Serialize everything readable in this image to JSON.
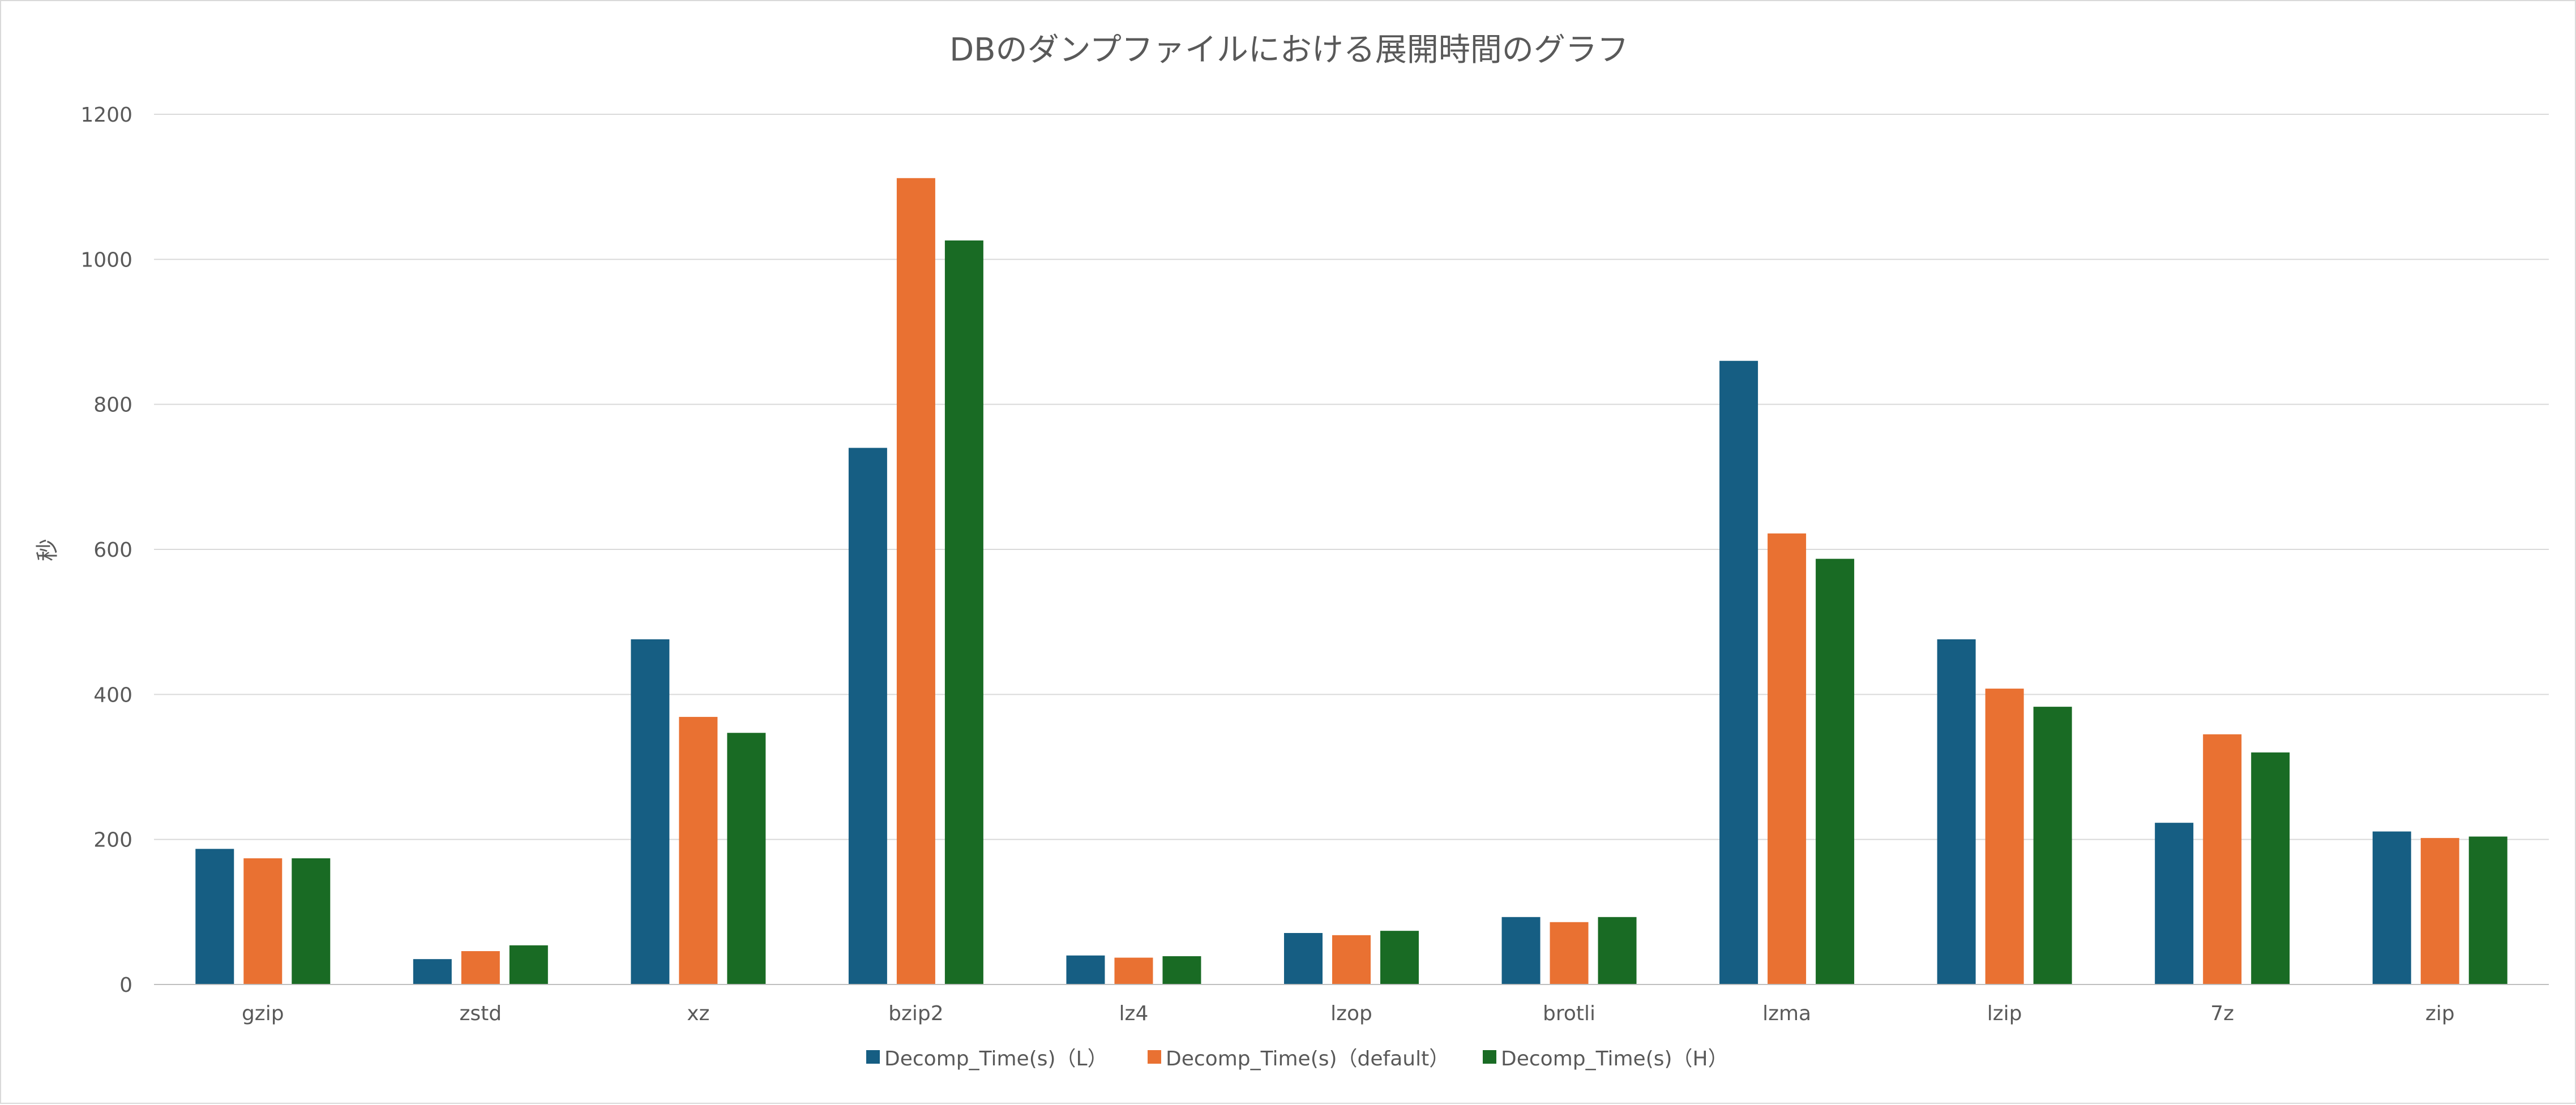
{
  "chart_data": {
    "type": "bar",
    "title": "DBのダンプファイルにおける展開時間のグラフ",
    "xlabel": "",
    "ylabel": "秒",
    "ylim": [
      0,
      1200
    ],
    "yticks": [
      0,
      200,
      400,
      600,
      800,
      1000,
      1200
    ],
    "grid": true,
    "legend_position": "bottom",
    "categories": [
      "gzip",
      "zstd",
      "xz",
      "bzip2",
      "lz4",
      "lzop",
      "brotli",
      "lzma",
      "lzip",
      "7z",
      "zip"
    ],
    "series": [
      {
        "name": "Decomp_Time(s)（L）",
        "color": "#165E83",
        "values": [
          187,
          35,
          476,
          740,
          40,
          71,
          93,
          860,
          476,
          223,
          211
        ]
      },
      {
        "name": "Decomp_Time(s)（default）",
        "color": "#E97132",
        "values": [
          174,
          46,
          369,
          1112,
          37,
          68,
          86,
          622,
          408,
          345,
          202
        ]
      },
      {
        "name": "Decomp_Time(s)（H）",
        "color": "#196B24",
        "values": [
          174,
          54,
          347,
          1026,
          39,
          74,
          93,
          587,
          383,
          320,
          204
        ]
      }
    ]
  }
}
